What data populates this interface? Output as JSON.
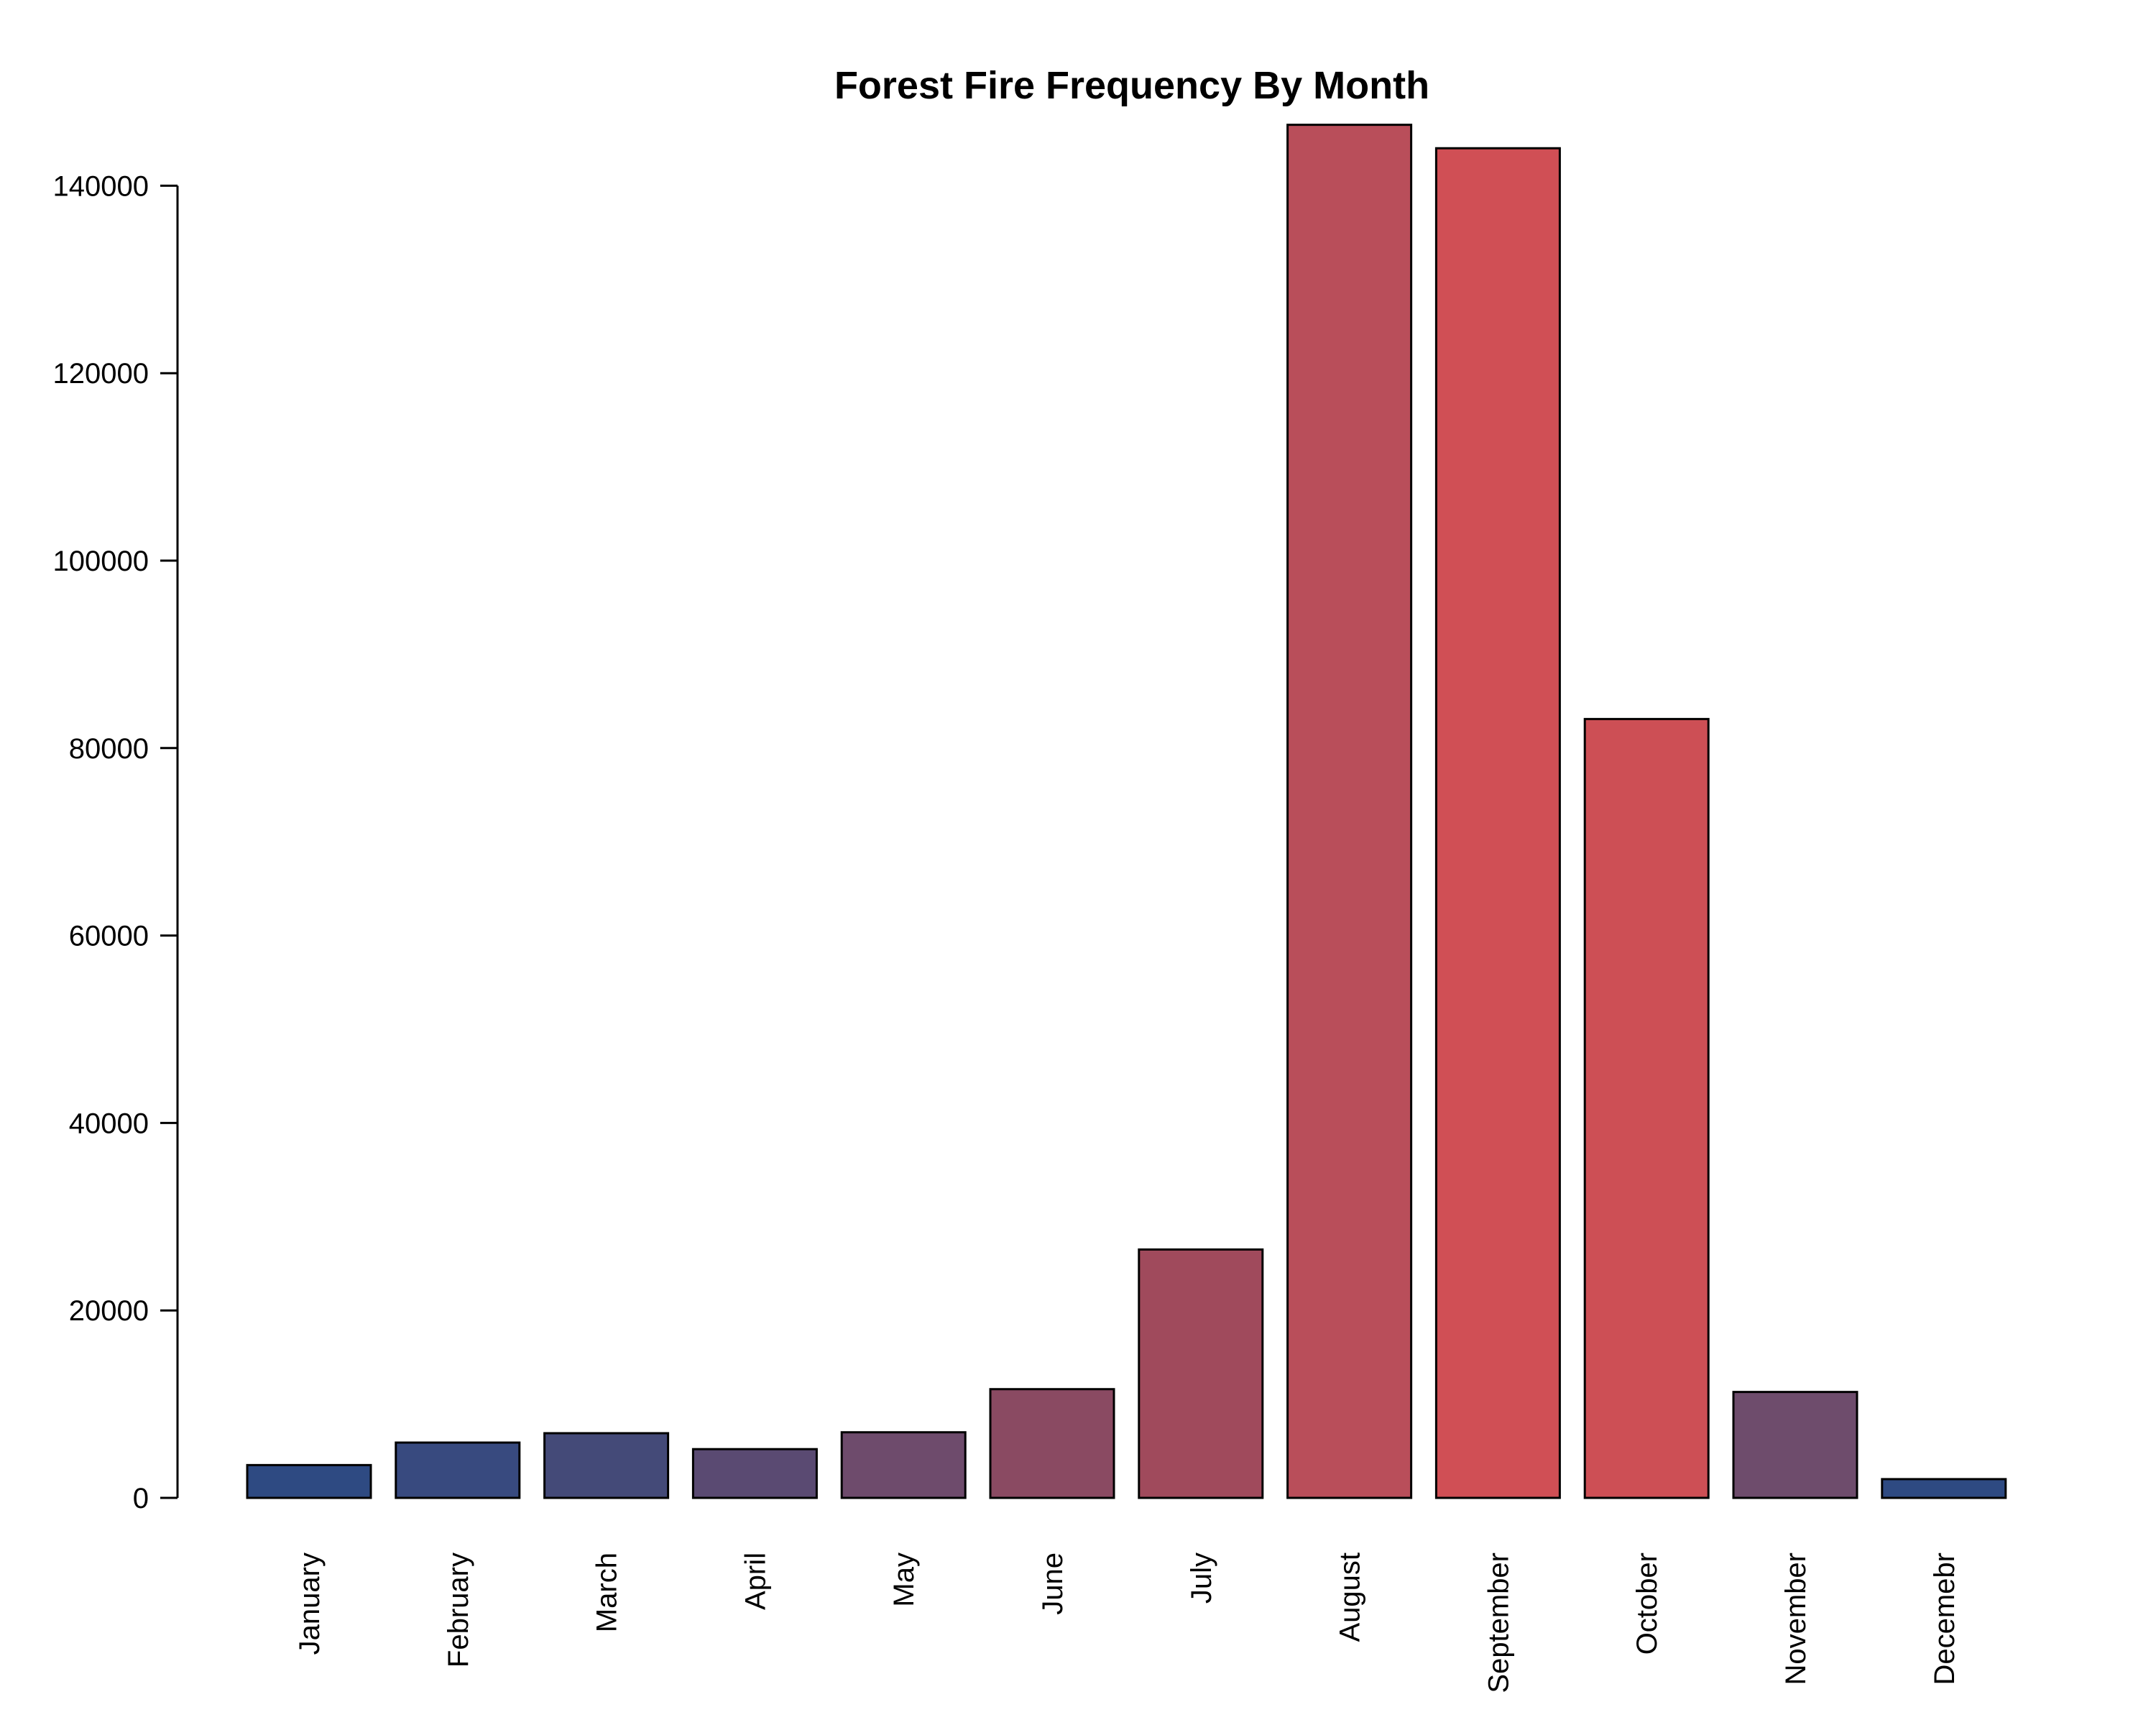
{
  "chart_data": {
    "type": "bar",
    "title": "Forest Fire Frequency By Month",
    "xlabel": "",
    "ylabel": "",
    "categories": [
      "January",
      "February",
      "March",
      "April",
      "May",
      "June",
      "July",
      "August",
      "September",
      "October",
      "November",
      "Decemebr"
    ],
    "values": [
      3500,
      5900,
      6900,
      5200,
      7000,
      11600,
      26500,
      146500,
      144000,
      83100,
      11300,
      2000
    ],
    "colors": [
      "#2e4a82",
      "#384a7f",
      "#444a78",
      "#5a4a72",
      "#6e4b6c",
      "#8a4a62",
      "#a04a5c",
      "#b94e5a",
      "#d04f55",
      "#cd4f55",
      "#6e4c6c",
      "#2e4a82"
    ],
    "ylim": [
      0,
      146500
    ],
    "yticks": [
      0,
      20000,
      40000,
      60000,
      80000,
      100000,
      120000,
      140000
    ],
    "grid": false,
    "legend": "none"
  }
}
